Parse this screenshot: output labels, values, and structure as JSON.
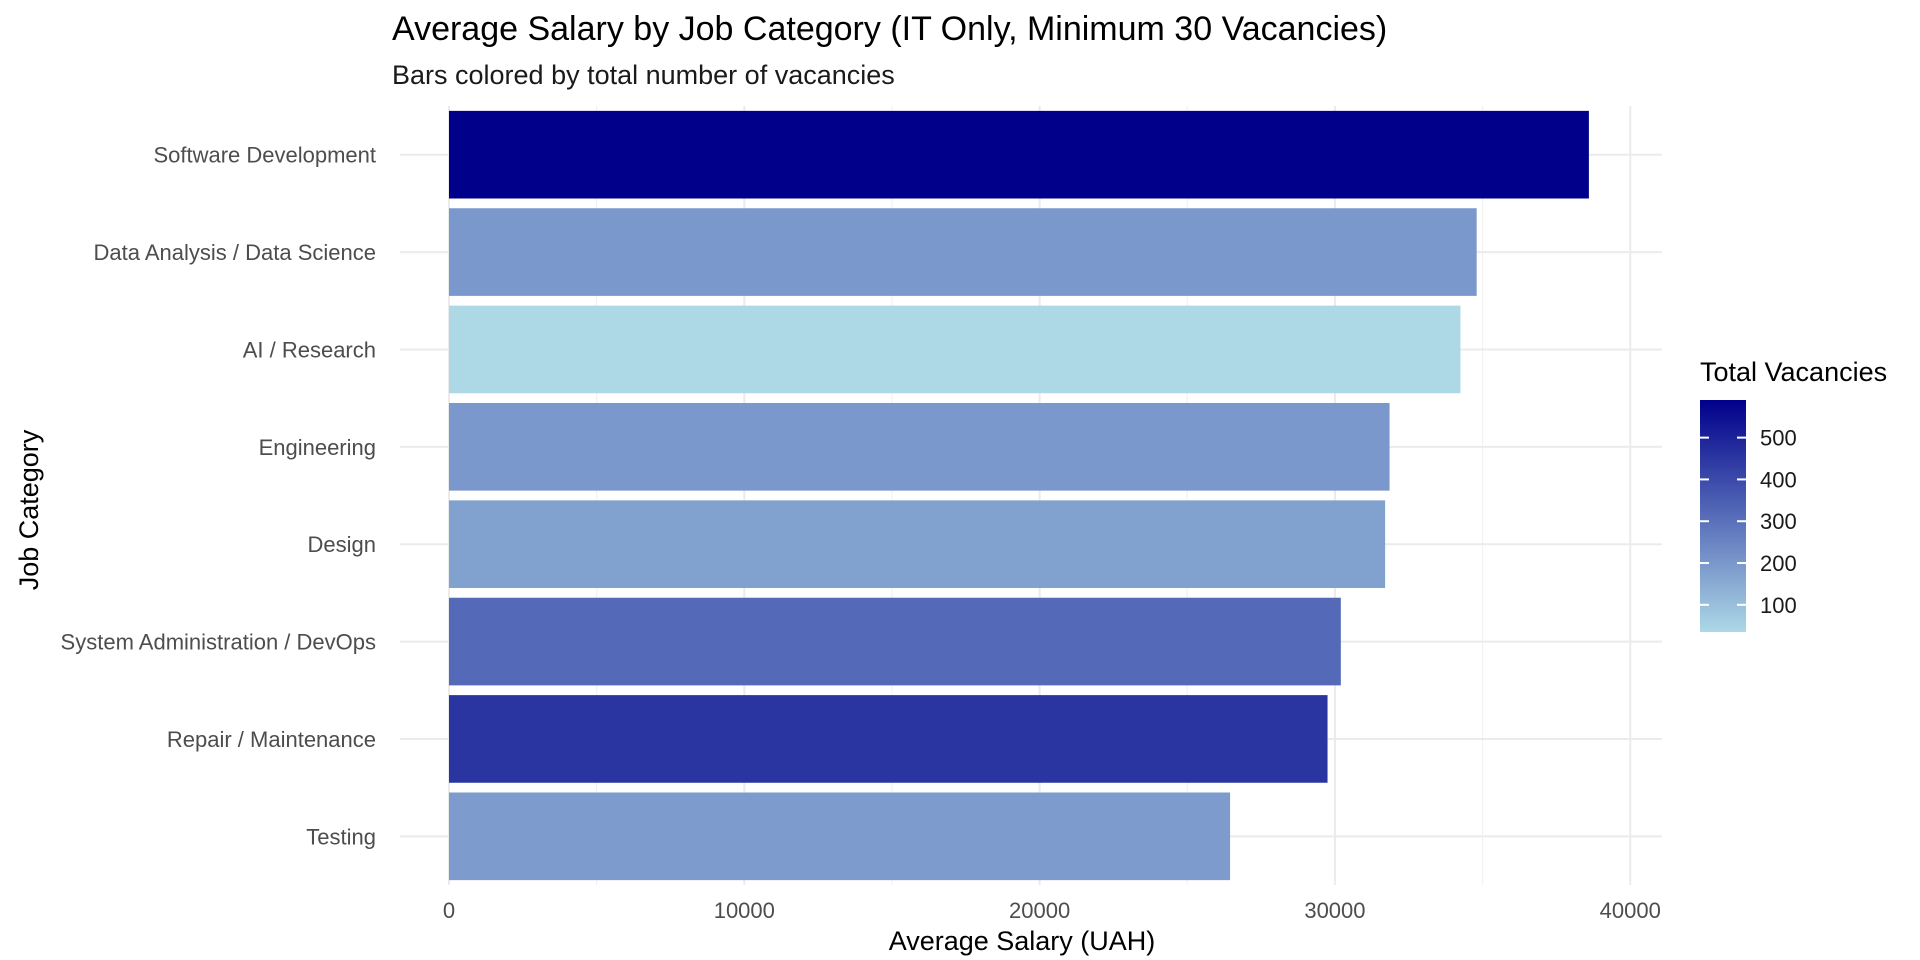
{
  "chart_data": {
    "type": "bar",
    "orientation": "horizontal",
    "title": "Average Salary by Job Category (IT Only, Minimum 30 Vacancies)",
    "subtitle": "Bars colored by total number of vacancies",
    "xlabel": "Average Salary (UAH)",
    "ylabel": "Job Category",
    "xlim": [
      0,
      40500
    ],
    "x_ticks": [
      0,
      10000,
      20000,
      30000,
      40000
    ],
    "x_tick_labels": [
      "0",
      "10000",
      "20000",
      "30000",
      "40000"
    ],
    "grid": true,
    "categories": [
      "Software Development",
      "Data Analysis / Data Science",
      "AI / Research",
      "Engineering",
      "Design",
      "System Administration / DevOps",
      "Repair / Maintenance",
      "Testing"
    ],
    "values": [
      38600,
      34800,
      34250,
      31850,
      31700,
      30200,
      29750,
      26450
    ],
    "vacancies": [
      590,
      200,
      35,
      200,
      175,
      320,
      455,
      190
    ],
    "color_scale": {
      "title": "Total Vacancies",
      "low_color": "#add8e6",
      "high_color": "#00008b",
      "min": 35,
      "max": 590,
      "ticks": [
        100,
        200,
        300,
        400,
        500
      ],
      "tick_labels": [
        "100",
        "200",
        "300",
        "400",
        "500"
      ]
    },
    "legend_position": "right"
  }
}
